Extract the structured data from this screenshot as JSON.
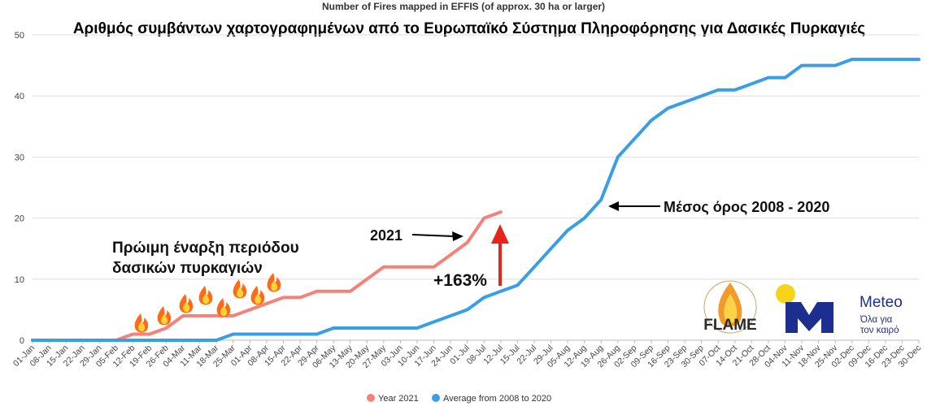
{
  "chart_data": {
    "type": "line",
    "title": "Number of Fires mapped in EFFIS (of approx. 30 ha or larger)",
    "subtitle": "Αριθμός συμβάντων χαρτογραφημένων από το Ευρωπαϊκό Σύστημα Πληροφόρησης για Δασικές Πυρκαγιές",
    "xlabel": "",
    "ylabel": "",
    "ylim": [
      0,
      50
    ],
    "yticks": [
      0,
      10,
      20,
      30,
      40,
      50
    ],
    "grid": true,
    "legend_position": "bottom",
    "x": [
      "01-Jan",
      "08-Jan",
      "15-Jan",
      "22-Jan",
      "29-Jan",
      "05-Feb",
      "12-Feb",
      "19-Feb",
      "26-Feb",
      "04-Mar",
      "11-Mar",
      "18-Mar",
      "25-Mar",
      "01-Apr",
      "08-Apr",
      "15-Apr",
      "22-Apr",
      "29-Apr",
      "06-May",
      "13-May",
      "20-May",
      "27-May",
      "03-Jun",
      "10-Jun",
      "17-Jun",
      "24-Jun",
      "01-Jul",
      "08-Jul",
      "12-Jul",
      "15-Jul",
      "22-Jul",
      "29-Jul",
      "05-Aug",
      "12-Aug",
      "19-Aug",
      "26-Aug",
      "02-Sep",
      "09-Sep",
      "16-Sep",
      "23-Sep",
      "30-Sep",
      "07-Oct",
      "14-Oct",
      "21-Oct",
      "28-Oct",
      "04-Nov",
      "11-Nov",
      "18-Nov",
      "25-Nov",
      "02-Dec",
      "09-Dec",
      "16-Dec",
      "23-Dec",
      "30-Dec"
    ],
    "series": [
      {
        "name": "Year 2021",
        "color": "#f4817a",
        "values": [
          0,
          0,
          0,
          0,
          0,
          0,
          1,
          1,
          2,
          4,
          4,
          4,
          4,
          5,
          6,
          7,
          7,
          8,
          8,
          8,
          10,
          12,
          12,
          12,
          12,
          14,
          16,
          20,
          21,
          null,
          null,
          null,
          null,
          null,
          null,
          null,
          null,
          null,
          null,
          null,
          null,
          null,
          null,
          null,
          null,
          null,
          null,
          null,
          null,
          null,
          null,
          null,
          null,
          null
        ]
      },
      {
        "name": "Average from 2008 to 2020",
        "color": "#3a9ee4",
        "values": [
          0,
          0,
          0,
          0,
          0,
          0,
          0,
          0,
          0,
          0,
          0,
          0,
          1,
          1,
          1,
          1,
          1,
          1,
          2,
          2,
          2,
          2,
          2,
          2,
          3,
          4,
          5,
          7,
          8,
          9,
          12,
          15,
          18,
          20,
          23,
          30,
          33,
          36,
          38,
          39,
          40,
          41,
          41,
          42,
          43,
          43,
          45,
          45,
          45,
          46,
          46,
          46,
          46,
          46
        ]
      }
    ],
    "annotations": {
      "early_season": [
        "Πρώιμη έναρξη περιόδου",
        "δασικών πυρκαγιών"
      ],
      "label_2021": "2021",
      "label_average": "Μέσος όρος 2008 - 2020",
      "label_increase": "+163%"
    }
  },
  "logos": {
    "flame_text": "FLAME",
    "meteo_name": "Meteo",
    "meteo_tagline": [
      "Όλα για",
      "τον καιρό"
    ]
  },
  "colors": {
    "series_2021": "#f4817a",
    "series_average": "#3a9ee4",
    "increase_arrow": "#e8251a",
    "meteo_navy": "#1c2f8f",
    "meteo_yellow": "#f7d417",
    "fire_orange": "#ff6a1a"
  },
  "icons": {
    "fire": "fire-emoji-icon"
  }
}
